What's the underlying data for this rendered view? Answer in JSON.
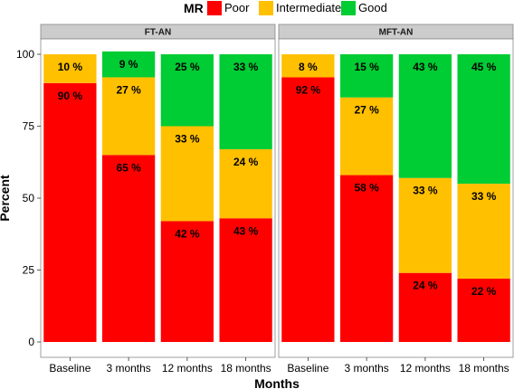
{
  "chart_data": {
    "type": "bar",
    "stacked": true,
    "legend": {
      "title": "MR",
      "position": "top",
      "entries": [
        {
          "key": "poor",
          "label": "Poor",
          "color": "#ff0000"
        },
        {
          "key": "intermediate",
          "label": "Intermediate",
          "color": "#ffc000"
        },
        {
          "key": "good",
          "label": "Good",
          "color": "#00cc33"
        }
      ]
    },
    "xlabel": "Months",
    "ylabel": "Percent",
    "ylim": [
      0,
      100
    ],
    "yticks": [
      0,
      25,
      50,
      75,
      100
    ],
    "categories": [
      "Baseline",
      "3 months",
      "12 months",
      "18 months"
    ],
    "panels": [
      {
        "title": "FT-AN",
        "series": [
          {
            "key": "poor",
            "values": [
              90,
              65,
              42,
              43
            ],
            "labels": [
              "90 %",
              "65 %",
              "42 %",
              "43 %"
            ]
          },
          {
            "key": "intermediate",
            "values": [
              10,
              27,
              33,
              24
            ],
            "labels": [
              "10 %",
              "27 %",
              "33 %",
              "24 %"
            ]
          },
          {
            "key": "good",
            "values": [
              0,
              9,
              25,
              33
            ],
            "labels": [
              "",
              "9 %",
              "25 %",
              "33 %"
            ]
          }
        ]
      },
      {
        "title": "MFT-AN",
        "series": [
          {
            "key": "poor",
            "values": [
              92,
              58,
              24,
              22
            ],
            "labels": [
              "92 %",
              "58 %",
              "24 %",
              "22 %"
            ]
          },
          {
            "key": "intermediate",
            "values": [
              8,
              27,
              33,
              33
            ],
            "labels": [
              "8 %",
              "27 %",
              "33 %",
              "33 %"
            ]
          },
          {
            "key": "good",
            "values": [
              0,
              15,
              43,
              45
            ],
            "labels": [
              "",
              "15 %",
              "43 %",
              "45 %"
            ]
          }
        ]
      }
    ]
  }
}
